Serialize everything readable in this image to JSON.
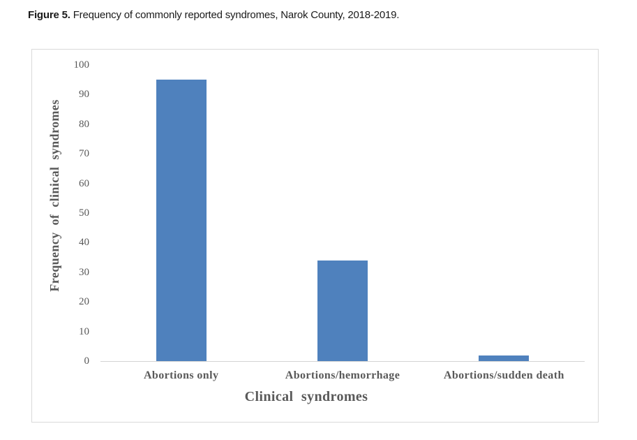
{
  "caption": {
    "label": "Figure 5.",
    "text": "Frequency of commonly reported syndromes, Narok County, 2018-2019."
  },
  "chart_data": {
    "type": "bar",
    "title": "Figure 5. Frequency of commonly reported syndromes, Narok County, 2018-2019.",
    "categories": [
      "Abortions only",
      "Abortions/hemorrhage",
      "Abortions/sudden death"
    ],
    "values": [
      95,
      34,
      2
    ],
    "xlabel": "Clinical syndromes",
    "ylabel": "Frequency of clinical syndromes",
    "ylim": [
      0,
      100
    ],
    "yticks": [
      0,
      10,
      20,
      30,
      40,
      50,
      60,
      70,
      80,
      90,
      100
    ],
    "grid": false,
    "legend": false,
    "bar_color": "#4F81BD"
  },
  "colors": {
    "bar": "#4F81BD",
    "tick_text": "#595959",
    "axis_title_text": "#595959",
    "axis_line": "#d3d3d3",
    "frame_border": "#d9d9d9",
    "background": "#ffffff"
  }
}
